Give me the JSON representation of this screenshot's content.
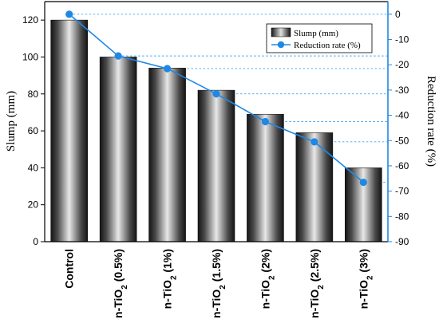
{
  "chart_data": {
    "type": "bar",
    "categories": [
      "Control",
      "n-TiO2 (0.5%)",
      "n-TiO2 (1%)",
      "n-TiO2 (1.5%)",
      "n-TiO2 (2%)",
      "n-TiO2 (2.5%)",
      "n-TiO2 (3%)"
    ],
    "category_parts": [
      {
        "pre": "Control",
        "sub": "",
        "post": ""
      },
      {
        "pre": "n-TiO",
        "sub": "2",
        "post": " (0.5%)"
      },
      {
        "pre": "n-TiO",
        "sub": "2",
        "post": " (1%)"
      },
      {
        "pre": "n-TiO",
        "sub": "2",
        "post": " (1.5%)"
      },
      {
        "pre": "n-TiO",
        "sub": "2",
        "post": " (2%)"
      },
      {
        "pre": "n-TiO",
        "sub": "2",
        "post": " (2.5%)"
      },
      {
        "pre": "n-TiO",
        "sub": "2",
        "post": " (3%)"
      }
    ],
    "series": [
      {
        "name": "Slump (mm)",
        "type": "bar",
        "axis": "left",
        "values": [
          120,
          100,
          94,
          82,
          69,
          59,
          40
        ]
      },
      {
        "name": "Reduction rate (%)",
        "type": "line",
        "axis": "right",
        "values": [
          0,
          -16.5,
          -21.5,
          -31.5,
          -42.5,
          -50.5,
          -66.5
        ]
      }
    ],
    "ylabel": "Slump (mm)",
    "y2label": "Reduction rate (%)",
    "ylim": [
      0,
      130
    ],
    "y2lim": [
      -90,
      5
    ],
    "yticks": [
      0,
      20,
      40,
      60,
      80,
      100,
      120
    ],
    "y2ticks": [
      0,
      -10,
      -20,
      -30,
      -40,
      -50,
      -60,
      -70,
      -80,
      -90
    ],
    "legend_position": "top-right",
    "colors": {
      "bars": "#3a3a3a",
      "line": "#1e88e5"
    }
  }
}
